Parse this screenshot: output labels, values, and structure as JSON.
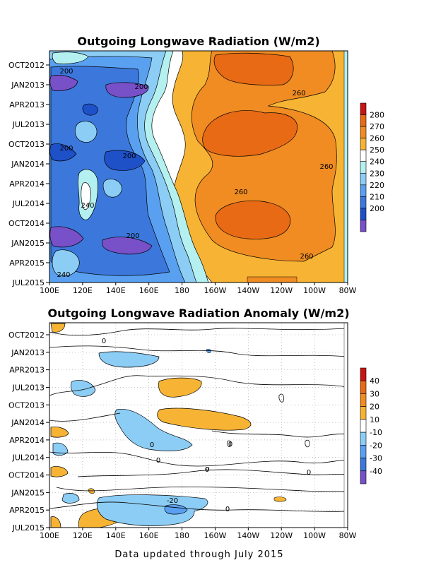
{
  "footer": "Data updated through July 2015",
  "chart_data": [
    {
      "type": "heatmap",
      "title": "Outgoing Longwave Radiation (W/m2)",
      "xlabel": "",
      "ylabel": "",
      "x_ticks": [
        "100E",
        "120E",
        "140E",
        "160E",
        "180",
        "160W",
        "140W",
        "120W",
        "100W",
        "80W"
      ],
      "y_ticks": [
        "OCT2012",
        "JAN2013",
        "APR2013",
        "JUL2013",
        "OCT2013",
        "JAN2014",
        "APR2014",
        "JUL2014",
        "OCT2014",
        "JAN2015",
        "APR2015",
        "JUL2015"
      ],
      "colorbar": {
        "ticks": [
          280,
          270,
          260,
          250,
          240,
          230,
          220,
          210,
          200
        ],
        "colors": [
          "#c81414",
          "#e86a14",
          "#f08c22",
          "#f7b434",
          "#ffffff",
          "#b4f0f0",
          "#8ccdf5",
          "#5aa0f0",
          "#3c78dc",
          "#1e50c8",
          "#7850c8"
        ]
      },
      "contour_labels": [
        "200",
        "200",
        "260",
        "200",
        "200",
        "260",
        "260",
        "240",
        "200",
        "260",
        "240"
      ],
      "regions_note": "Low OLR (<220) over western Pacific 100E-160E; high OLR (260-275) over 170W-90W; maxima near OCT2013 and OCT2014 around 140W"
    },
    {
      "type": "heatmap",
      "title": "Outgoing Longwave Radiation Anomaly (W/m2)",
      "xlabel": "",
      "ylabel": "",
      "x_ticks": [
        "100E",
        "120E",
        "140E",
        "160E",
        "180",
        "160W",
        "140W",
        "120W",
        "100W",
        "80W"
      ],
      "y_ticks": [
        "OCT2012",
        "JAN2013",
        "APR2013",
        "JUL2013",
        "OCT2013",
        "JAN2014",
        "APR2014",
        "JUL2014",
        "OCT2014",
        "JAN2015",
        "APR2015",
        "JUL2015"
      ],
      "colorbar": {
        "ticks": [
          40,
          30,
          20,
          10,
          -10,
          -20,
          -30,
          -40
        ],
        "colors": [
          "#c81414",
          "#e86a14",
          "#f08c22",
          "#f7b434",
          "#ffffff",
          "#8ccdf5",
          "#5aa0f0",
          "#3c78dc",
          "#7850c8"
        ]
      },
      "contour_labels": [
        "0",
        "0",
        "0",
        "0",
        "0",
        "0",
        "-20",
        "0"
      ],
      "regions_note": "Positive anomalies (+10..+20) near 160E-150W in JUL2013-JAN2014; negative anomalies (-10..-30) 160E-140W in JAN2015-JUL2015"
    }
  ]
}
